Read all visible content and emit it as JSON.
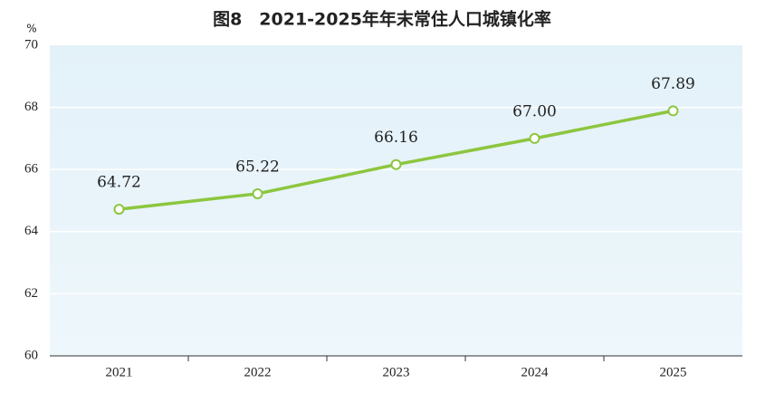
{
  "chart_data": {
    "type": "line",
    "title": "图8　2021-2025年年末常住人口城镇化率",
    "ylabel": "%",
    "categories": [
      "2021",
      "2022",
      "2023",
      "2024",
      "2025"
    ],
    "values": [
      64.72,
      65.22,
      66.16,
      67.0,
      67.89
    ],
    "value_labels": [
      "64.72",
      "65.22",
      "66.16",
      "67.00",
      "67.89"
    ],
    "color": "#8cc63f",
    "ylim": [
      60,
      70
    ],
    "yticks": [
      60,
      62,
      64,
      66,
      68,
      70
    ],
    "grid": true
  }
}
